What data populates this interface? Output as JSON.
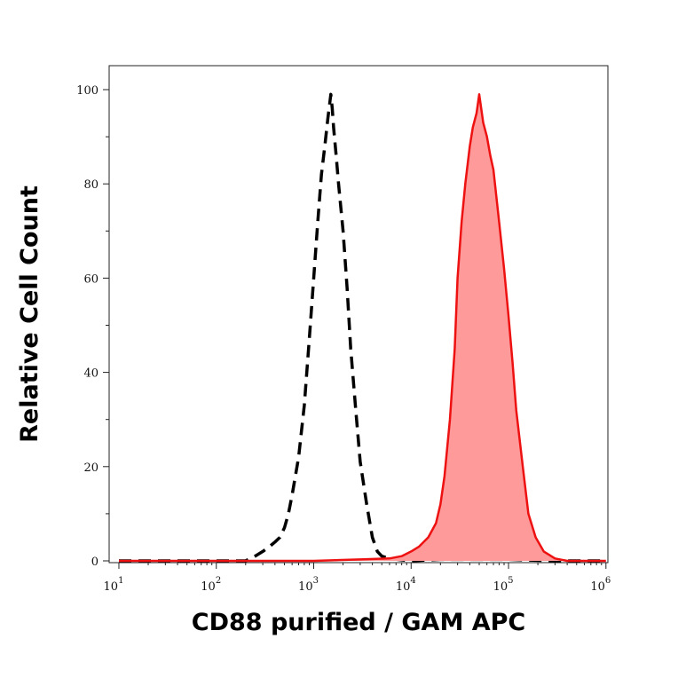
{
  "chart_data": {
    "type": "area",
    "xlabel": "CD88 purified / GAM APC",
    "ylabel": "Relative Cell Count",
    "x_scale": "log",
    "xlim": [
      10,
      1000000
    ],
    "ylim": [
      0,
      100
    ],
    "x_ticks": [
      {
        "base": "10",
        "exp": "1",
        "value": 10
      },
      {
        "base": "10",
        "exp": "2",
        "value": 100
      },
      {
        "base": "10",
        "exp": "3",
        "value": 1000
      },
      {
        "base": "10",
        "exp": "4",
        "value": 10000
      },
      {
        "base": "10",
        "exp": "5",
        "value": 100000
      },
      {
        "base": "10",
        "exp": "6",
        "value": 1000000
      }
    ],
    "y_ticks": [
      "0",
      "20",
      "40",
      "60",
      "80",
      "100"
    ],
    "grid": false,
    "series": [
      {
        "style": "dashed",
        "color": "#000000",
        "fill": false,
        "x": [
          10,
          60,
          100,
          200,
          250,
          300,
          350,
          400,
          450,
          500,
          550,
          600,
          700,
          800,
          900,
          1000,
          1100,
          1200,
          1300,
          1400,
          1500,
          1550,
          1600,
          1700,
          1800,
          2000,
          2200,
          2400,
          2700,
          3000,
          3500,
          4000,
          4500,
          5000,
          6000,
          8000,
          10000,
          20000,
          100000,
          300000,
          1000000
        ],
        "y": [
          0,
          0,
          0,
          0,
          1,
          2,
          3,
          4,
          5,
          7,
          10,
          14,
          22,
          33,
          47,
          60,
          72,
          82,
          88,
          94,
          99,
          96,
          92,
          86,
          80,
          70,
          58,
          45,
          32,
          21,
          12,
          5,
          2,
          1,
          0.5,
          0.2,
          0,
          0.3,
          0.3,
          0,
          0
        ]
      },
      {
        "style": "solid",
        "color": "#ee1111",
        "fill": true,
        "fill_color": "#ff9a9a",
        "x": [
          10,
          1000,
          3000,
          6000,
          8000,
          10000,
          12000,
          15000,
          18000,
          20000,
          22000,
          25000,
          28000,
          30000,
          33000,
          36000,
          40000,
          43000,
          47000,
          50000,
          55000,
          60000,
          65000,
          70000,
          80000,
          90000,
          100000,
          110000,
          120000,
          140000,
          160000,
          190000,
          230000,
          300000,
          400000,
          1000000
        ],
        "y": [
          0,
          0,
          0.3,
          0.5,
          1,
          2,
          3,
          5,
          8,
          12,
          18,
          30,
          45,
          60,
          72,
          80,
          88,
          92,
          95,
          99,
          93,
          90,
          86,
          83,
          72,
          62,
          52,
          42,
          32,
          20,
          10,
          5,
          2,
          0.5,
          0,
          0
        ]
      }
    ]
  }
}
